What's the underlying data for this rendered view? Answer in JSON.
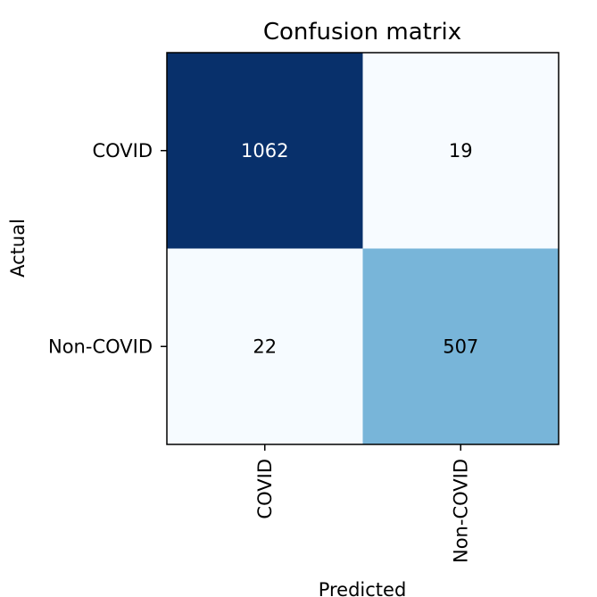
{
  "chart_data": {
    "type": "heatmap",
    "title": "Confusion matrix",
    "xlabel": "Predicted",
    "ylabel": "Actual",
    "x_categories": [
      "COVID",
      "Non-COVID"
    ],
    "y_categories": [
      "COVID",
      "Non-COVID"
    ],
    "values": [
      [
        1062,
        19
      ],
      [
        22,
        507
      ]
    ],
    "colormap": "Blues",
    "grid": false,
    "legend": "none"
  },
  "colors": {
    "text_on_dark": "#ffffff",
    "text_on_light": "#000000",
    "frame": "#000000"
  }
}
